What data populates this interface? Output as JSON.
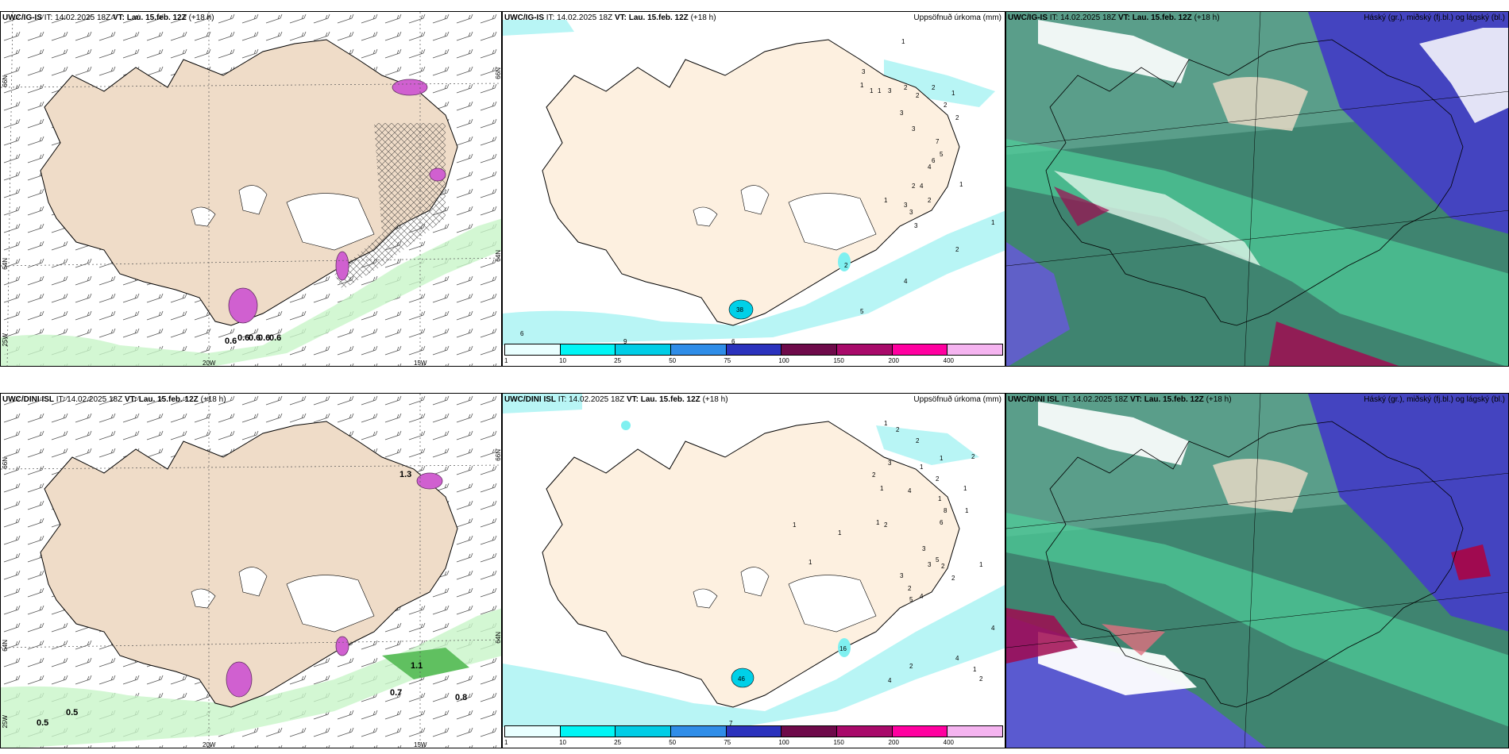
{
  "rows": [
    {
      "id": "top",
      "model": "UWC/IG-IS",
      "it_label": "IT:",
      "it_value": "14.02.2025 18Z",
      "vt_label": "VT:",
      "vt_value": "Lau. 15.feb. 12Z",
      "lead": "(+18 h)",
      "wind_labels": [
        "0.6",
        "0.6",
        "0.6",
        "0.6",
        "0.6"
      ],
      "precip_values": [
        "1",
        "3",
        "1",
        "1",
        "1",
        "3",
        "2",
        "2",
        "1",
        "2",
        "2",
        "3",
        "2",
        "3",
        "7",
        "5",
        "4",
        "6",
        "1",
        "1",
        "2",
        "3",
        "4",
        "3",
        "2",
        "3",
        "1",
        "2",
        "4",
        "5",
        "6",
        "9",
        "6",
        "2",
        "38"
      ],
      "lat_labels": [
        "66N",
        "64N",
        "25W"
      ],
      "lon_labels": [
        "20W",
        "15W"
      ],
      "right_lat_labels": [
        "66N",
        "64N"
      ]
    },
    {
      "id": "bottom",
      "model": "UWC/DINI ISL",
      "it_label": "IT:",
      "it_value": "14.02.2025 18Z",
      "vt_label": "VT:",
      "vt_value": "Lau. 15.feb. 12Z",
      "lead": "(+18 h)",
      "wind_labels": [
        "1.3",
        "1.1",
        "0.7",
        "0.8",
        "0.5",
        "0.5"
      ],
      "precip_values": [
        "1",
        "2",
        "2",
        "3",
        "1",
        "2",
        "1",
        "2",
        "4",
        "2",
        "1",
        "1",
        "1",
        "8",
        "6",
        "1",
        "1",
        "1",
        "1",
        "2",
        "3",
        "5",
        "3",
        "2",
        "1",
        "2",
        "3",
        "1",
        "2",
        "4",
        "5",
        "4",
        "4",
        "2",
        "1",
        "2",
        "4",
        "7",
        "46",
        "16"
      ],
      "lat_labels": [
        "66N",
        "64N",
        "25W"
      ],
      "lon_labels": [
        "20W",
        "15W"
      ],
      "right_lat_labels": [
        "66N",
        "64N"
      ]
    }
  ],
  "precip_title": "Uppsöfnuð úrkoma (mm)",
  "cloud_title": "Háský (gr.), miðský (fj.bl.) og lágský (bl.)",
  "legend": {
    "ticks": [
      "1",
      "10",
      "25",
      "50",
      "75",
      "100",
      "150",
      "200",
      "400"
    ],
    "colors": [
      "#e9ffff",
      "#00f5f5",
      "#00cde6",
      "#2f8de8",
      "#2b32bd",
      "#6e0a4a",
      "#a80a6a",
      "#ff00a0",
      "#f5b4f0"
    ]
  },
  "colors": {
    "land": "#f0dcc8",
    "land_light": "#fdf0e0",
    "sea": "#ffffff",
    "wind_green": "#b0f0b0",
    "purple_gust": "#d060d0",
    "cloud_high": "#6d9e90",
    "cloud_mid": "#4fcf9a",
    "cloud_low": "#4444c0"
  }
}
